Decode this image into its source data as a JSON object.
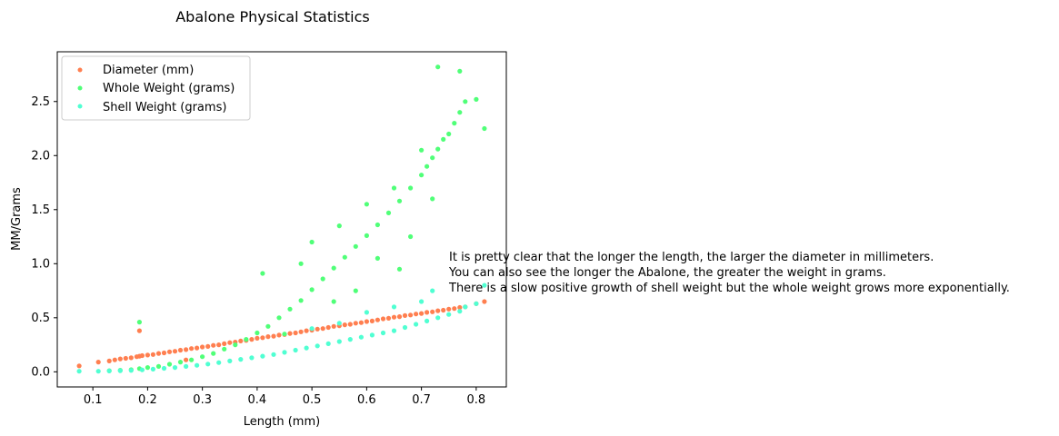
{
  "chart_data": {
    "type": "scatter",
    "title": "Abalone Physical Statistics",
    "xlabel": "Length (mm)",
    "ylabel": "MM/Grams",
    "xlim": [
      0.035,
      0.855
    ],
    "ylim": [
      -0.14,
      2.96
    ],
    "xticks": [
      "0.1",
      "0.2",
      "0.3",
      "0.4",
      "0.5",
      "0.6",
      "0.7",
      "0.8"
    ],
    "yticks": [
      "0.0",
      "0.5",
      "1.0",
      "1.5",
      "2.0",
      "2.5"
    ],
    "grid": false,
    "legend_position": "top-left",
    "series": [
      {
        "name": "Diameter (mm)",
        "color": "#FF7F50",
        "x": [
          0.075,
          0.11,
          0.13,
          0.14,
          0.15,
          0.16,
          0.17,
          0.18,
          0.185,
          0.19,
          0.2,
          0.21,
          0.22,
          0.23,
          0.24,
          0.25,
          0.26,
          0.27,
          0.28,
          0.29,
          0.3,
          0.31,
          0.32,
          0.33,
          0.34,
          0.35,
          0.36,
          0.37,
          0.38,
          0.39,
          0.4,
          0.41,
          0.42,
          0.43,
          0.44,
          0.45,
          0.46,
          0.47,
          0.48,
          0.49,
          0.5,
          0.51,
          0.52,
          0.53,
          0.54,
          0.55,
          0.56,
          0.57,
          0.58,
          0.59,
          0.6,
          0.61,
          0.62,
          0.63,
          0.64,
          0.65,
          0.66,
          0.67,
          0.68,
          0.69,
          0.7,
          0.71,
          0.72,
          0.73,
          0.74,
          0.75,
          0.76,
          0.77,
          0.78,
          0.8,
          0.815,
          0.185,
          0.27
        ],
        "y": [
          0.055,
          0.09,
          0.1,
          0.11,
          0.12,
          0.125,
          0.13,
          0.14,
          0.145,
          0.15,
          0.155,
          0.16,
          0.17,
          0.175,
          0.185,
          0.19,
          0.2,
          0.205,
          0.215,
          0.22,
          0.23,
          0.235,
          0.245,
          0.25,
          0.26,
          0.27,
          0.275,
          0.285,
          0.29,
          0.3,
          0.31,
          0.315,
          0.325,
          0.33,
          0.34,
          0.345,
          0.355,
          0.36,
          0.37,
          0.38,
          0.385,
          0.395,
          0.4,
          0.41,
          0.42,
          0.425,
          0.435,
          0.44,
          0.45,
          0.455,
          0.465,
          0.47,
          0.48,
          0.49,
          0.495,
          0.505,
          0.51,
          0.52,
          0.525,
          0.535,
          0.54,
          0.55,
          0.555,
          0.565,
          0.57,
          0.58,
          0.585,
          0.595,
          0.6,
          0.63,
          0.65,
          0.38,
          0.11
        ]
      },
      {
        "name": "Whole Weight (grams)",
        "color": "#50FF78",
        "x": [
          0.13,
          0.15,
          0.17,
          0.185,
          0.2,
          0.22,
          0.24,
          0.26,
          0.28,
          0.3,
          0.32,
          0.34,
          0.36,
          0.38,
          0.4,
          0.42,
          0.44,
          0.46,
          0.48,
          0.5,
          0.52,
          0.54,
          0.56,
          0.58,
          0.6,
          0.62,
          0.64,
          0.66,
          0.68,
          0.7,
          0.71,
          0.72,
          0.73,
          0.74,
          0.75,
          0.76,
          0.77,
          0.78,
          0.8,
          0.815,
          0.185,
          0.41,
          0.5,
          0.55,
          0.6,
          0.65,
          0.7,
          0.73,
          0.77,
          0.66,
          0.58,
          0.45,
          0.62,
          0.68,
          0.72,
          0.48,
          0.54
        ],
        "y": [
          0.01,
          0.015,
          0.02,
          0.03,
          0.04,
          0.05,
          0.07,
          0.09,
          0.11,
          0.14,
          0.17,
          0.21,
          0.25,
          0.3,
          0.36,
          0.42,
          0.5,
          0.58,
          0.66,
          0.76,
          0.86,
          0.96,
          1.06,
          1.16,
          1.26,
          1.36,
          1.47,
          1.58,
          1.7,
          1.82,
          1.9,
          1.98,
          2.06,
          2.15,
          2.2,
          2.3,
          2.4,
          2.5,
          2.52,
          2.25,
          0.46,
          0.91,
          1.2,
          1.35,
          1.55,
          1.7,
          2.05,
          2.82,
          2.78,
          0.95,
          0.75,
          0.35,
          1.05,
          1.25,
          1.6,
          1.0,
          0.65
        ]
      },
      {
        "name": "Shell Weight (grams)",
        "color": "#50FFD2",
        "x": [
          0.075,
          0.11,
          0.13,
          0.15,
          0.17,
          0.19,
          0.21,
          0.23,
          0.25,
          0.27,
          0.29,
          0.31,
          0.33,
          0.35,
          0.37,
          0.39,
          0.41,
          0.43,
          0.45,
          0.47,
          0.49,
          0.51,
          0.53,
          0.55,
          0.57,
          0.59,
          0.61,
          0.63,
          0.65,
          0.67,
          0.69,
          0.71,
          0.73,
          0.75,
          0.77,
          0.78,
          0.8,
          0.815,
          0.6,
          0.65,
          0.7,
          0.72,
          0.55,
          0.5
        ],
        "y": [
          0.005,
          0.005,
          0.008,
          0.01,
          0.013,
          0.018,
          0.025,
          0.032,
          0.04,
          0.05,
          0.06,
          0.072,
          0.085,
          0.1,
          0.115,
          0.13,
          0.145,
          0.16,
          0.18,
          0.2,
          0.22,
          0.24,
          0.26,
          0.28,
          0.3,
          0.32,
          0.34,
          0.36,
          0.38,
          0.41,
          0.44,
          0.47,
          0.5,
          0.53,
          0.56,
          0.6,
          0.63,
          0.8,
          0.55,
          0.6,
          0.65,
          0.75,
          0.45,
          0.4
        ]
      }
    ],
    "annotation": [
      "It is pretty clear that the longer the length, the larger the diameter in millimeters.",
      "You can also see the longer the Abalone, the greater the weight in grams.",
      "There is a slow positive growth of shell weight but the whole weight grows more exponentially."
    ]
  }
}
